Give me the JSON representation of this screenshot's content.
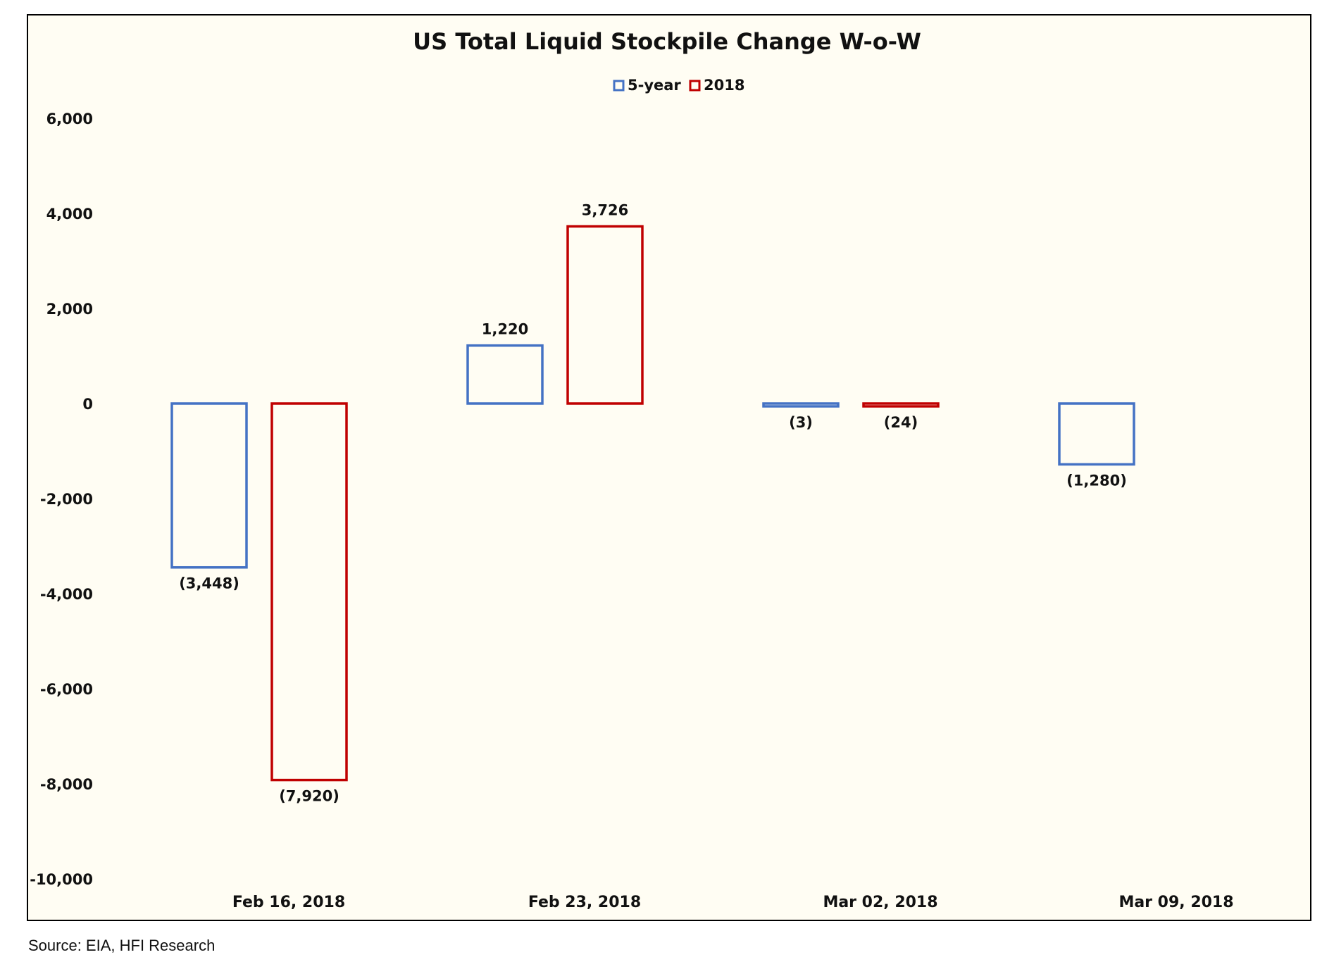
{
  "chart_data": {
    "type": "bar",
    "title": "US Total Liquid Stockpile Change W-o-W",
    "xlabel": "",
    "ylabel": "",
    "categories": [
      "Feb 16, 2018",
      "Feb 23, 2018",
      "Mar 02, 2018",
      "Mar 09, 2018"
    ],
    "series": [
      {
        "name": "5-year",
        "color": "#4472c4",
        "values": [
          -3448,
          1220,
          -3,
          -1280
        ],
        "labels": [
          "(3,448)",
          "1,220",
          "(3)",
          "(1,280)"
        ]
      },
      {
        "name": "2018",
        "color": "#c00000",
        "values": [
          -7920,
          3726,
          -24,
          null
        ],
        "labels": [
          "(7,920)",
          "3,726",
          "(24)",
          null
        ]
      }
    ],
    "ylim": [
      -10000,
      6000
    ],
    "yticks": [
      6000,
      4000,
      2000,
      0,
      -2000,
      -4000,
      -6000,
      -8000,
      -10000
    ],
    "ytick_labels": [
      "6,000",
      "4,000",
      "2,000",
      "0",
      "-2,000",
      "-4,000",
      "-6,000",
      "-8,000",
      "-10,000"
    ],
    "grid": false,
    "legend_position": "top-center",
    "bar_style": "outlined"
  },
  "source": "Source: EIA, HFI Research"
}
